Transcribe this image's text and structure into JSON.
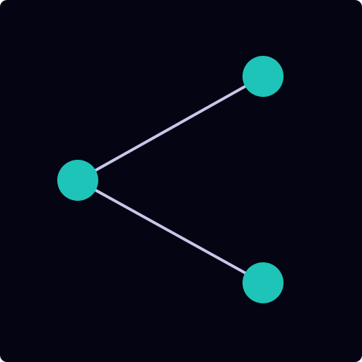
{
  "icon": {
    "name": "share-icon",
    "colors": {
      "background": "#050412",
      "node": "#1fc4b8",
      "edge": "#c9c6ea"
    }
  }
}
